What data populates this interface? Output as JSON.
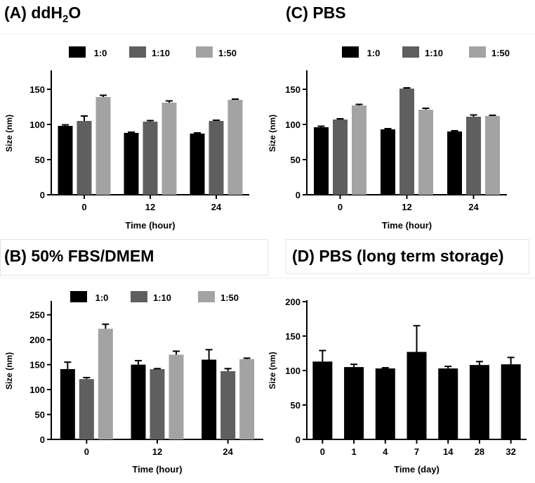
{
  "panels": [
    {
      "id": "A",
      "title_prefix": "(A) ddH",
      "title_sub": "2",
      "title_suffix": "O",
      "title": "(A) ddH2O"
    },
    {
      "id": "C",
      "title": "(C) PBS"
    },
    {
      "id": "B",
      "title": "(B) 50% FBS/DMEM"
    },
    {
      "id": "D",
      "title": "(D) PBS (long term storage)"
    }
  ],
  "chart_data": [
    {
      "panel": "A",
      "type": "bar",
      "title": "(A) ddH2O",
      "xlabel": "Time (hour)",
      "ylabel": "Size (nm)",
      "ylim": [
        0,
        175
      ],
      "yticks": [
        0,
        50,
        100,
        150
      ],
      "categories": [
        "0",
        "12",
        "24"
      ],
      "series": [
        {
          "name": "1:0",
          "color": "#000000",
          "values": [
            98,
            88,
            87
          ],
          "errors": [
            1.5,
            1,
            1
          ]
        },
        {
          "name": "1:10",
          "color": "#5f5f5f",
          "values": [
            105,
            104,
            105
          ],
          "errors": [
            7,
            1.5,
            1
          ]
        },
        {
          "name": "1:50",
          "color": "#a3a3a3",
          "values": [
            139,
            131,
            135
          ],
          "errors": [
            2.5,
            2.5,
            1
          ]
        }
      ]
    },
    {
      "panel": "C",
      "type": "bar",
      "title": "(C) PBS",
      "xlabel": "Time (hour)",
      "ylabel": "Size (nm)",
      "ylim": [
        0,
        175
      ],
      "yticks": [
        0,
        50,
        100,
        150
      ],
      "categories": [
        "0",
        "12",
        "24"
      ],
      "series": [
        {
          "name": "1:0",
          "color": "#000000",
          "values": [
            96,
            93,
            90
          ],
          "errors": [
            1.5,
            1,
            1
          ]
        },
        {
          "name": "1:10",
          "color": "#5f5f5f",
          "values": [
            107,
            151,
            111
          ],
          "errors": [
            1,
            1,
            2.5
          ]
        },
        {
          "name": "1:50",
          "color": "#a3a3a3",
          "values": [
            127,
            121,
            112
          ],
          "errors": [
            1.5,
            2,
            1
          ]
        }
      ]
    },
    {
      "panel": "B",
      "type": "bar",
      "title": "(B) 50% FBS/DMEM",
      "xlabel": "Time (hour)",
      "ylabel": "Size (nm)",
      "ylim": [
        0,
        275
      ],
      "yticks": [
        0,
        50,
        100,
        150,
        200,
        250
      ],
      "categories": [
        "0",
        "12",
        "24"
      ],
      "series": [
        {
          "name": "1:0",
          "color": "#000000",
          "values": [
            141,
            150,
            160
          ],
          "errors": [
            14,
            8,
            20
          ]
        },
        {
          "name": "1:10",
          "color": "#5f5f5f",
          "values": [
            121,
            141,
            137
          ],
          "errors": [
            3,
            1,
            5
          ]
        },
        {
          "name": "1:50",
          "color": "#a3a3a3",
          "values": [
            222,
            170,
            161
          ],
          "errors": [
            9,
            7,
            2
          ]
        }
      ]
    },
    {
      "panel": "D",
      "type": "bar",
      "title": "(D) PBS (long term storage)",
      "xlabel": "Time  (day)",
      "ylabel": "Size (nm)",
      "ylim": [
        0,
        200
      ],
      "yticks": [
        0,
        50,
        100,
        150,
        200
      ],
      "categories": [
        "0",
        "1",
        "4",
        "7",
        "14",
        "28",
        "32"
      ],
      "series": [
        {
          "name": "size",
          "color": "#000000",
          "values": [
            113,
            105,
            103,
            127,
            103,
            108,
            109
          ],
          "errors": [
            16,
            4,
            1,
            38,
            3,
            5,
            10
          ]
        }
      ]
    }
  ]
}
